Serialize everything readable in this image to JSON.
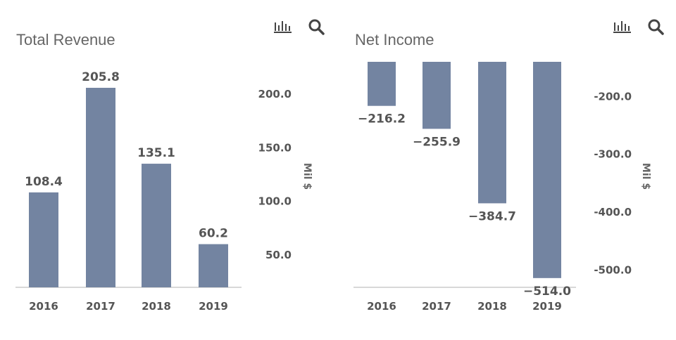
{
  "colors": {
    "bar": "#7384a1",
    "axis": "#d8d8d8",
    "text": "#555555"
  },
  "icons": [
    "bar-chart-icon",
    "search-icon"
  ],
  "chart_data": [
    {
      "type": "bar",
      "title": "Total Revenue",
      "categories": [
        "2016",
        "2017",
        "2018",
        "2019"
      ],
      "values": [
        108.4,
        205.8,
        135.1,
        60.2
      ],
      "value_labels": [
        "108.4",
        "205.8",
        "135.1",
        "60.2"
      ],
      "ylabel": "Mil $",
      "yticks": [
        50,
        100,
        150,
        200
      ],
      "ytick_labels": [
        "50.0",
        "100.0",
        "150.0",
        "200.0"
      ],
      "ylim": [
        20,
        230
      ],
      "y_axis_side": "right",
      "grid": false
    },
    {
      "type": "bar",
      "title": "Net Income",
      "categories": [
        "2016",
        "2017",
        "2018",
        "2019"
      ],
      "values": [
        -216.2,
        -255.9,
        -384.7,
        -514.0
      ],
      "value_labels": [
        "−216.2",
        "−255.9",
        "−384.7",
        "−514.0"
      ],
      "ylabel": "Mil $",
      "yticks": [
        -200,
        -300,
        -400,
        -500
      ],
      "ytick_labels": [
        "-200.0",
        "-300.0",
        "-400.0",
        "-500.0"
      ],
      "ylim": [
        -530,
        -140
      ],
      "y_axis_side": "right",
      "grid": false
    }
  ]
}
